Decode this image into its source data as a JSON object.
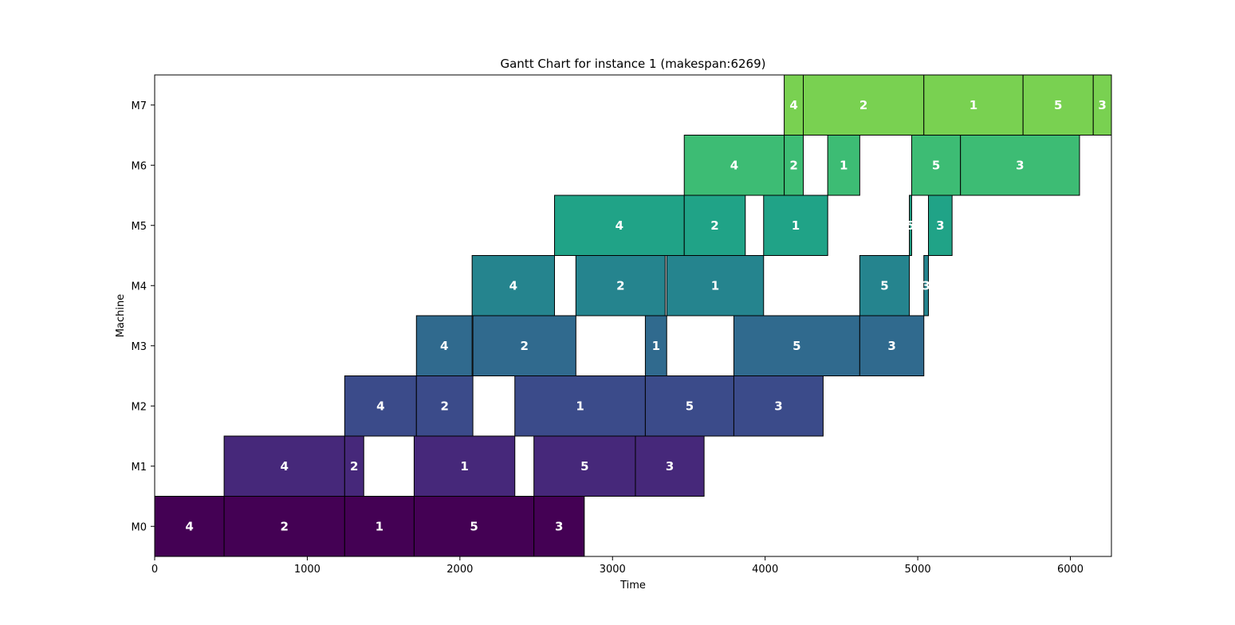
{
  "chart_data": {
    "type": "gantt",
    "title": "Gantt Chart for instance 1 (makespan:6269)",
    "xlabel": "Time",
    "ylabel": "Machine",
    "xlim": [
      0,
      6269
    ],
    "x_ticks": [
      0,
      1000,
      2000,
      3000,
      4000,
      5000,
      6000
    ],
    "grid": false,
    "machines": [
      {
        "name": "M0",
        "color": "#440154"
      },
      {
        "name": "M1",
        "color": "#46287a"
      },
      {
        "name": "M2",
        "color": "#3b4b8a"
      },
      {
        "name": "M3",
        "color": "#306a8e"
      },
      {
        "name": "M4",
        "color": "#25848e"
      },
      {
        "name": "M5",
        "color": "#20a387"
      },
      {
        "name": "M6",
        "color": "#3dbc74"
      },
      {
        "name": "M7",
        "color": "#79d151"
      }
    ],
    "tasks": [
      {
        "machine": 0,
        "job": "4",
        "start": 0,
        "end": 455
      },
      {
        "machine": 0,
        "job": "2",
        "start": 455,
        "end": 1245
      },
      {
        "machine": 0,
        "job": "1",
        "start": 1245,
        "end": 1700
      },
      {
        "machine": 0,
        "job": "5",
        "start": 1700,
        "end": 2485
      },
      {
        "machine": 0,
        "job": "3",
        "start": 2485,
        "end": 2815
      },
      {
        "machine": 1,
        "job": "4",
        "start": 455,
        "end": 1245
      },
      {
        "machine": 1,
        "job": "2",
        "start": 1245,
        "end": 1370
      },
      {
        "machine": 1,
        "job": "1",
        "start": 1700,
        "end": 2360
      },
      {
        "machine": 1,
        "job": "5",
        "start": 2485,
        "end": 3150
      },
      {
        "machine": 1,
        "job": "3",
        "start": 3150,
        "end": 3600
      },
      {
        "machine": 2,
        "job": "4",
        "start": 1245,
        "end": 1715
      },
      {
        "machine": 2,
        "job": "2",
        "start": 1715,
        "end": 2085
      },
      {
        "machine": 2,
        "job": "1",
        "start": 2360,
        "end": 3215
      },
      {
        "machine": 2,
        "job": "5",
        "start": 3215,
        "end": 3795
      },
      {
        "machine": 2,
        "job": "3",
        "start": 3795,
        "end": 4380
      },
      {
        "machine": 3,
        "job": "4",
        "start": 1715,
        "end": 2080
      },
      {
        "machine": 3,
        "job": "2",
        "start": 2085,
        "end": 2760
      },
      {
        "machine": 3,
        "job": "1",
        "start": 3215,
        "end": 3355
      },
      {
        "machine": 3,
        "job": "5",
        "start": 3795,
        "end": 4620
      },
      {
        "machine": 3,
        "job": "3",
        "start": 4620,
        "end": 5040
      },
      {
        "machine": 4,
        "job": "4",
        "start": 2080,
        "end": 2620
      },
      {
        "machine": 4,
        "job": "2",
        "start": 2760,
        "end": 3345
      },
      {
        "machine": 4,
        "job": "1",
        "start": 3355,
        "end": 3990
      },
      {
        "machine": 4,
        "job": "5",
        "start": 4620,
        "end": 4945
      },
      {
        "machine": 4,
        "job": "3",
        "start": 5040,
        "end": 5070
      },
      {
        "machine": 5,
        "job": "4",
        "start": 2620,
        "end": 3470
      },
      {
        "machine": 5,
        "job": "2",
        "start": 3470,
        "end": 3870
      },
      {
        "machine": 5,
        "job": "1",
        "start": 3990,
        "end": 4410
      },
      {
        "machine": 5,
        "job": "5",
        "start": 4945,
        "end": 4960
      },
      {
        "machine": 5,
        "job": "3",
        "start": 5070,
        "end": 5225
      },
      {
        "machine": 6,
        "job": "4",
        "start": 3470,
        "end": 4125
      },
      {
        "machine": 6,
        "job": "2",
        "start": 4125,
        "end": 4250
      },
      {
        "machine": 6,
        "job": "1",
        "start": 4410,
        "end": 4620
      },
      {
        "machine": 6,
        "job": "5",
        "start": 4960,
        "end": 5280
      },
      {
        "machine": 6,
        "job": "3",
        "start": 5280,
        "end": 6060
      },
      {
        "machine": 7,
        "job": "4",
        "start": 4125,
        "end": 4250
      },
      {
        "machine": 7,
        "job": "2",
        "start": 4250,
        "end": 5040
      },
      {
        "machine": 7,
        "job": "1",
        "start": 5040,
        "end": 5690
      },
      {
        "machine": 7,
        "job": "5",
        "start": 5690,
        "end": 6150
      },
      {
        "machine": 7,
        "job": "3",
        "start": 6150,
        "end": 6269
      }
    ]
  }
}
